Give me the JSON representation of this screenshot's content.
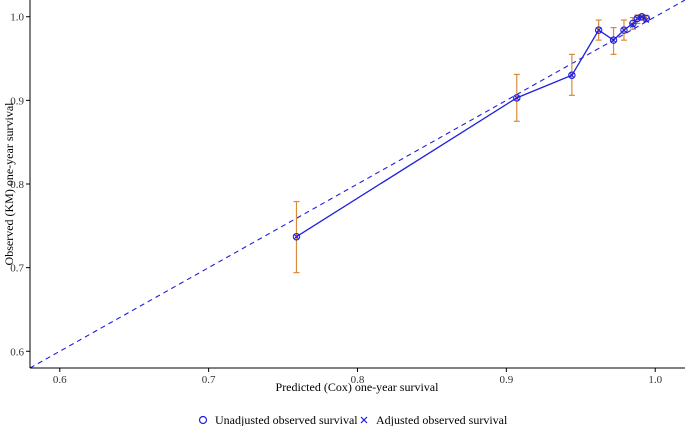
{
  "chart_data": {
    "type": "scatter",
    "title": "",
    "xlabel": "Predicted (Cox) one-year survival",
    "ylabel": "Observed (KM) one-year survival",
    "xlim": [
      0.58,
      1.02
    ],
    "ylim": [
      0.58,
      1.02
    ],
    "x_ticks": [
      0.6,
      0.7,
      0.8,
      0.9,
      1.0
    ],
    "x_tick_labels": [
      "0.6",
      "0.7",
      "0.8",
      "0.9",
      "1.0"
    ],
    "y_ticks": [
      0.6,
      0.7,
      0.8,
      0.9,
      1.0
    ],
    "y_tick_labels": [
      "0.6",
      "0.7",
      "0.8",
      "0.9",
      "1.0"
    ],
    "grid": false,
    "legend_position": "bottom",
    "reference_line": {
      "style": "dashed",
      "slope": 1,
      "intercept": 0
    },
    "series": [
      {
        "name": "Unadjusted observed survival",
        "marker": "circle",
        "x": [
          0.759,
          0.907,
          0.944,
          0.962,
          0.972,
          0.979,
          0.985,
          0.988,
          0.991,
          0.994
        ],
        "y": [
          0.737,
          0.903,
          0.93,
          0.984,
          0.972,
          0.984,
          0.992,
          0.998,
          1.0,
          0.998
        ],
        "line": true
      },
      {
        "name": "Adjusted observed survival",
        "marker": "x",
        "x": [
          0.759,
          0.907,
          0.944,
          0.962,
          0.972,
          0.979,
          0.985,
          0.988,
          0.991,
          0.994
        ],
        "y": [
          0.737,
          0.903,
          0.93,
          0.984,
          0.972,
          0.984,
          0.99,
          0.998,
          1.0,
          0.996
        ]
      }
    ],
    "error_bars": {
      "x": [
        0.759,
        0.907,
        0.944,
        0.962,
        0.972,
        0.979,
        0.985,
        0.988,
        0.991,
        0.994
      ],
      "lower": [
        0.694,
        0.875,
        0.906,
        0.972,
        0.955,
        0.972,
        0.985,
        0.992,
        0.996,
        0.994
      ],
      "upper": [
        0.779,
        0.931,
        0.955,
        0.996,
        0.987,
        0.996,
        0.999,
        1.002,
        1.002,
        1.001
      ]
    },
    "colors": {
      "line": "#1f1fe0",
      "markers": "#1f1fe0",
      "error_bars": "#d98a3a",
      "reference_line": "#1f1fe0",
      "axis": "#000000"
    }
  },
  "legend": {
    "items": [
      {
        "label": "Unadjusted observed survival",
        "marker": "circle"
      },
      {
        "label": "Adjusted observed survival",
        "marker": "x"
      }
    ]
  }
}
